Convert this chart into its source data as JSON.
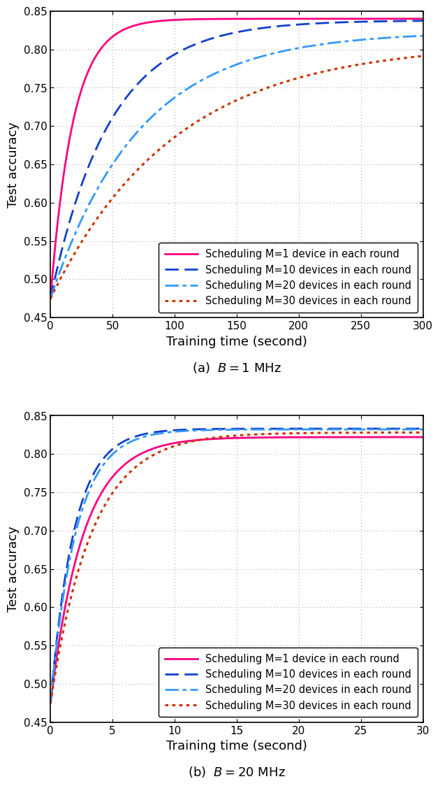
{
  "subplot_a": {
    "title": "(a)  $B = 1$ MHz",
    "xlabel": "Training time (second)",
    "ylabel": "Test accuracy",
    "xlim": [
      0,
      300
    ],
    "ylim": [
      0.45,
      0.85
    ],
    "xticks": [
      0,
      50,
      100,
      150,
      200,
      250,
      300
    ],
    "yticks": [
      0.45,
      0.5,
      0.55,
      0.6,
      0.65,
      0.7,
      0.75,
      0.8,
      0.85
    ],
    "curves": [
      {
        "label": "Scheduling M=1 device in each round",
        "color": "#FF007F",
        "linestyle": "solid",
        "linewidth": 2.0,
        "asymptote": 0.84,
        "rate": 0.055,
        "start": 0.475
      },
      {
        "label": "Scheduling M=10 devices in each round",
        "color": "#1040CC",
        "linestyle": "dashed",
        "linewidth": 2.0,
        "asymptote": 0.838,
        "rate": 0.021,
        "start": 0.475
      },
      {
        "label": "Scheduling M=20 devices in each round",
        "color": "#3399FF",
        "linestyle": "dashdot",
        "linewidth": 2.0,
        "asymptote": 0.823,
        "rate": 0.014,
        "start": 0.475
      },
      {
        "label": "Scheduling M=30 devices in each round",
        "color": "#CC3300",
        "linestyle": "dotted",
        "linewidth": 2.2,
        "asymptote": 0.808,
        "rate": 0.01,
        "start": 0.475
      }
    ]
  },
  "subplot_b": {
    "title": "(b)  $B = 20$ MHz",
    "xlabel": "Training time (second)",
    "ylabel": "Test accuracy",
    "xlim": [
      0,
      30
    ],
    "ylim": [
      0.45,
      0.85
    ],
    "xticks": [
      0,
      5,
      10,
      15,
      20,
      25,
      30
    ],
    "yticks": [
      0.45,
      0.5,
      0.55,
      0.6,
      0.65,
      0.7,
      0.75,
      0.8,
      0.85
    ],
    "curves": [
      {
        "label": "Scheduling M=1 device in each round",
        "color": "#FF007F",
        "linestyle": "solid",
        "linewidth": 2.0,
        "asymptote": 0.822,
        "rate": 0.38,
        "start": 0.475
      },
      {
        "label": "Scheduling M=10 devices in each round",
        "color": "#1040CC",
        "linestyle": "dashed",
        "linewidth": 2.0,
        "asymptote": 0.833,
        "rate": 0.52,
        "start": 0.475
      },
      {
        "label": "Scheduling M=20 devices in each round",
        "color": "#3399FF",
        "linestyle": "dashdot",
        "linewidth": 2.0,
        "asymptote": 0.832,
        "rate": 0.48,
        "start": 0.475
      },
      {
        "label": "Scheduling M=30 devices in each round",
        "color": "#CC3300",
        "linestyle": "dotted",
        "linewidth": 2.2,
        "asymptote": 0.828,
        "rate": 0.3,
        "start": 0.475
      }
    ]
  },
  "legend_loc": "lower right",
  "grid_color": "#aaaaaa",
  "background_color": "#ffffff",
  "tick_fontsize": 11,
  "label_fontsize": 13,
  "legend_fontsize": 10.5,
  "caption_fontsize": 13
}
